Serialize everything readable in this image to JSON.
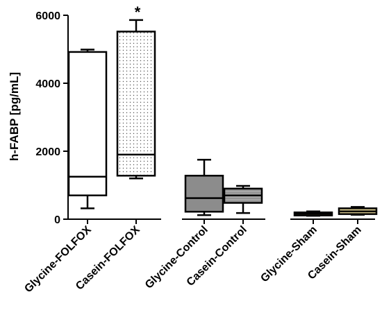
{
  "chart_data": {
    "type": "box",
    "ylabel": "h-FABP [pg/mL]",
    "ylim": [
      0,
      6000
    ],
    "yticks": [
      "0",
      "2000",
      "4000",
      "6000"
    ],
    "grid": false,
    "boxes": [
      {
        "label": "Glycine-FOLFOX",
        "min": 320,
        "q1": 700,
        "median": 1250,
        "q3": 4920,
        "max": 4990,
        "fill": "#ffffff",
        "pattern": "none",
        "annotation": ""
      },
      {
        "label": "Casein-FOLFOX",
        "min": 1200,
        "q1": 1280,
        "median": 1900,
        "q3": 5520,
        "max": 5860,
        "fill": "#ffffff",
        "pattern": "dots",
        "annotation": "*"
      },
      {
        "label": "Glycine-Control",
        "min": 120,
        "q1": 220,
        "median": 620,
        "q3": 1280,
        "max": 1750,
        "fill": "#8c8c8c",
        "pattern": "none",
        "annotation": ""
      },
      {
        "label": "Casein-Control",
        "min": 180,
        "q1": 480,
        "median": 700,
        "q3": 900,
        "max": 980,
        "fill": "#a8a8a8",
        "pattern": "lines",
        "annotation": ""
      },
      {
        "label": "Glycine-Sham",
        "min": 100,
        "q1": 110,
        "median": 160,
        "q3": 200,
        "max": 230,
        "fill": "#9c8e4a",
        "pattern": "none",
        "annotation": ""
      },
      {
        "label": "Casein-Sham",
        "min": 130,
        "q1": 150,
        "median": 230,
        "q3": 320,
        "max": 360,
        "fill": "#d6c88e",
        "pattern": "none",
        "annotation": ""
      }
    ]
  }
}
